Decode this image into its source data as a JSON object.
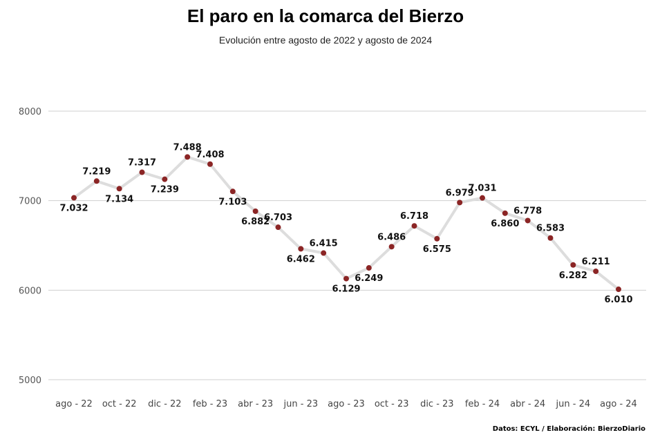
{
  "header": {
    "title": "El paro en la comarca del Bierzo",
    "subtitle": "Evolución entre agosto de 2022 y agosto de 2024"
  },
  "footer": {
    "source": "Datos: ECYL / Elaboración: BierzoDiario"
  },
  "colors": {
    "line": "#dddddd",
    "marker": "#8b2525",
    "grid": "#cfcfcf"
  },
  "chart_data": {
    "type": "line",
    "title": "El paro en la comarca del Bierzo",
    "subtitle": "Evolución entre agosto de 2022 y agosto de 2024",
    "xlabel": "",
    "ylabel": "",
    "ylim": [
      5000,
      8000
    ],
    "yticks": [
      "8000",
      "7000",
      "6000",
      "5000"
    ],
    "grid": true,
    "legend": "none",
    "x": [
      "ago 22",
      "sep 22",
      "oct 22",
      "nov 22",
      "dic 22",
      "ene 23",
      "feb 23",
      "mar 23",
      "abr 23",
      "may 23",
      "jun 23",
      "jul 23",
      "ago 23",
      "sep 23",
      "oct 23",
      "nov 23",
      "dic 23",
      "ene 24",
      "feb 24",
      "mar 24",
      "abr 24",
      "may 24",
      "jun 24",
      "jul 24",
      "ago 24"
    ],
    "xtick_labels": [
      "ago - 22",
      "",
      "oct - 22",
      "",
      "dic - 22",
      "",
      "feb - 23",
      "",
      "abr - 23",
      "",
      "jun - 23",
      "",
      "ago - 23",
      "",
      "oct - 23",
      "",
      "dic - 23",
      "",
      "feb - 24",
      "",
      "abr - 24",
      "",
      "jun - 24",
      "",
      "ago - 24"
    ],
    "values": [
      7032,
      7219,
      7134,
      7317,
      7239,
      7488,
      7408,
      7103,
      6882,
      6703,
      6462,
      6415,
      6129,
      6249,
      6486,
      6718,
      6575,
      6979,
      7031,
      6860,
      6778,
      6583,
      6282,
      6211,
      6010
    ],
    "data_labels": [
      "7.032",
      "7.219",
      "7.134",
      "7.317",
      "7.239",
      "7.488",
      "7.408",
      "7.103",
      "6.882",
      "6.703",
      "6.462",
      "6.415",
      "6.129",
      "6.249",
      "6.486",
      "6.718",
      "6.575",
      "6.979",
      "7.031",
      "6.860",
      "6.778",
      "6.583",
      "6.282",
      "6.211",
      "6.010"
    ]
  }
}
